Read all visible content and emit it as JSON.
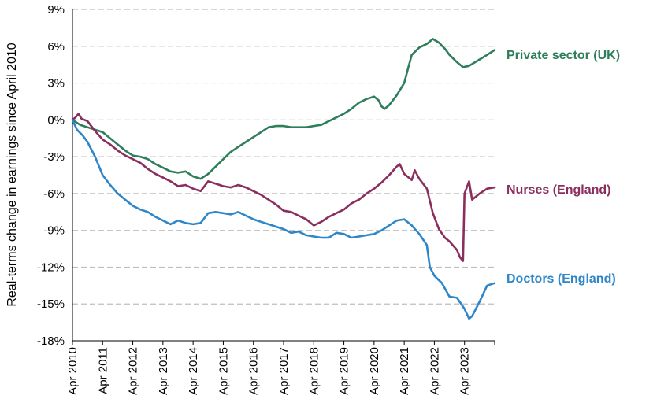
{
  "chart_data": {
    "type": "line",
    "title": "",
    "xlabel": "",
    "ylabel": "Real-terms change in earnings since April 2010",
    "ylim": [
      -18,
      9
    ],
    "y_ticks": [
      "9%",
      "6%",
      "3%",
      "0%",
      "-3%",
      "-6%",
      "-9%",
      "-12%",
      "-15%",
      "-18%"
    ],
    "y_tick_values": [
      9,
      6,
      3,
      0,
      -3,
      -6,
      -9,
      -12,
      -15,
      -18
    ],
    "xlim": [
      2010.25,
      2024.25
    ],
    "x_ticks": [
      "Apr 2010",
      "Apr 2011",
      "Apr 2012",
      "Apr 2013",
      "Apr 2014",
      "Apr 2015",
      "Apr 2016",
      "Apr 2017",
      "Apr 2018",
      "Apr 2019",
      "Apr 2020",
      "Apr 2021",
      "Apr 2022",
      "Apr 2023"
    ],
    "x_tick_values": [
      2010.25,
      2011.25,
      2012.25,
      2013.25,
      2014.25,
      2015.25,
      2016.25,
      2017.25,
      2018.25,
      2019.25,
      2020.25,
      2021.25,
      2022.25,
      2023.25
    ],
    "grid": "horizontal dashed",
    "series": [
      {
        "name": "Private sector (UK)",
        "color": "#2e7d5b",
        "points": [
          [
            2010.25,
            0
          ],
          [
            2010.5,
            -0.4
          ],
          [
            2010.75,
            -0.6
          ],
          [
            2011.0,
            -0.8
          ],
          [
            2011.25,
            -1.0
          ],
          [
            2011.5,
            -1.5
          ],
          [
            2011.75,
            -2.0
          ],
          [
            2012.0,
            -2.5
          ],
          [
            2012.25,
            -2.9
          ],
          [
            2012.5,
            -3.0
          ],
          [
            2012.75,
            -3.2
          ],
          [
            2013.0,
            -3.6
          ],
          [
            2013.25,
            -3.9
          ],
          [
            2013.5,
            -4.2
          ],
          [
            2013.75,
            -4.3
          ],
          [
            2014.0,
            -4.2
          ],
          [
            2014.25,
            -4.6
          ],
          [
            2014.5,
            -4.8
          ],
          [
            2014.75,
            -4.4
          ],
          [
            2015.0,
            -3.8
          ],
          [
            2015.25,
            -3.2
          ],
          [
            2015.5,
            -2.6
          ],
          [
            2015.75,
            -2.2
          ],
          [
            2016.0,
            -1.8
          ],
          [
            2016.25,
            -1.4
          ],
          [
            2016.5,
            -1.0
          ],
          [
            2016.75,
            -0.6
          ],
          [
            2017.0,
            -0.5
          ],
          [
            2017.25,
            -0.5
          ],
          [
            2017.5,
            -0.6
          ],
          [
            2017.75,
            -0.6
          ],
          [
            2018.0,
            -0.6
          ],
          [
            2018.25,
            -0.5
          ],
          [
            2018.5,
            -0.4
          ],
          [
            2018.75,
            -0.1
          ],
          [
            2019.0,
            0.2
          ],
          [
            2019.25,
            0.5
          ],
          [
            2019.5,
            0.9
          ],
          [
            2019.75,
            1.4
          ],
          [
            2020.0,
            1.7
          ],
          [
            2020.25,
            1.9
          ],
          [
            2020.4,
            1.6
          ],
          [
            2020.5,
            1.1
          ],
          [
            2020.6,
            0.9
          ],
          [
            2020.75,
            1.2
          ],
          [
            2021.0,
            2.0
          ],
          [
            2021.25,
            3.0
          ],
          [
            2021.4,
            4.4
          ],
          [
            2021.5,
            5.3
          ],
          [
            2021.75,
            5.9
          ],
          [
            2022.0,
            6.2
          ],
          [
            2022.2,
            6.6
          ],
          [
            2022.4,
            6.3
          ],
          [
            2022.6,
            5.8
          ],
          [
            2022.75,
            5.3
          ],
          [
            2023.0,
            4.7
          ],
          [
            2023.2,
            4.3
          ],
          [
            2023.4,
            4.4
          ],
          [
            2023.6,
            4.7
          ],
          [
            2023.8,
            5.0
          ],
          [
            2024.0,
            5.3
          ],
          [
            2024.25,
            5.7
          ]
        ]
      },
      {
        "name": "Nurses (England)",
        "color": "#8b2e5e",
        "points": [
          [
            2010.25,
            0
          ],
          [
            2010.35,
            0.2
          ],
          [
            2010.45,
            0.5
          ],
          [
            2010.55,
            0.1
          ],
          [
            2010.75,
            -0.1
          ],
          [
            2011.0,
            -0.9
          ],
          [
            2011.25,
            -1.6
          ],
          [
            2011.5,
            -2.0
          ],
          [
            2011.75,
            -2.5
          ],
          [
            2012.0,
            -2.9
          ],
          [
            2012.25,
            -3.2
          ],
          [
            2012.5,
            -3.5
          ],
          [
            2012.75,
            -4.0
          ],
          [
            2013.0,
            -4.4
          ],
          [
            2013.25,
            -4.7
          ],
          [
            2013.5,
            -5.0
          ],
          [
            2013.75,
            -5.4
          ],
          [
            2014.0,
            -5.3
          ],
          [
            2014.25,
            -5.6
          ],
          [
            2014.5,
            -5.8
          ],
          [
            2014.75,
            -5.0
          ],
          [
            2015.0,
            -5.2
          ],
          [
            2015.25,
            -5.4
          ],
          [
            2015.5,
            -5.5
          ],
          [
            2015.75,
            -5.3
          ],
          [
            2016.0,
            -5.5
          ],
          [
            2016.25,
            -5.8
          ],
          [
            2016.5,
            -6.1
          ],
          [
            2016.75,
            -6.5
          ],
          [
            2017.0,
            -6.9
          ],
          [
            2017.25,
            -7.4
          ],
          [
            2017.5,
            -7.5
          ],
          [
            2017.75,
            -7.8
          ],
          [
            2018.0,
            -8.1
          ],
          [
            2018.25,
            -8.6
          ],
          [
            2018.5,
            -8.3
          ],
          [
            2018.75,
            -7.9
          ],
          [
            2019.0,
            -7.6
          ],
          [
            2019.25,
            -7.3
          ],
          [
            2019.5,
            -6.8
          ],
          [
            2019.75,
            -6.5
          ],
          [
            2020.0,
            -6.0
          ],
          [
            2020.25,
            -5.6
          ],
          [
            2020.5,
            -5.1
          ],
          [
            2020.75,
            -4.5
          ],
          [
            2021.0,
            -3.8
          ],
          [
            2021.1,
            -3.6
          ],
          [
            2021.25,
            -4.4
          ],
          [
            2021.5,
            -4.9
          ],
          [
            2021.6,
            -4.1
          ],
          [
            2021.75,
            -4.8
          ],
          [
            2022.0,
            -5.6
          ],
          [
            2022.2,
            -7.6
          ],
          [
            2022.4,
            -8.9
          ],
          [
            2022.6,
            -9.6
          ],
          [
            2022.75,
            -9.9
          ],
          [
            2023.0,
            -10.6
          ],
          [
            2023.1,
            -11.2
          ],
          [
            2023.2,
            -11.5
          ],
          [
            2023.25,
            -6.0
          ],
          [
            2023.4,
            -5.0
          ],
          [
            2023.5,
            -6.5
          ],
          [
            2023.75,
            -6.0
          ],
          [
            2024.0,
            -5.6
          ],
          [
            2024.25,
            -5.5
          ]
        ]
      },
      {
        "name": "Doctors (England)",
        "color": "#2e86c9",
        "points": [
          [
            2010.25,
            0
          ],
          [
            2010.4,
            -0.8
          ],
          [
            2010.6,
            -1.3
          ],
          [
            2010.75,
            -1.8
          ],
          [
            2011.0,
            -3.0
          ],
          [
            2011.25,
            -4.5
          ],
          [
            2011.5,
            -5.3
          ],
          [
            2011.75,
            -6.0
          ],
          [
            2012.0,
            -6.5
          ],
          [
            2012.25,
            -7.0
          ],
          [
            2012.5,
            -7.3
          ],
          [
            2012.75,
            -7.5
          ],
          [
            2013.0,
            -7.9
          ],
          [
            2013.25,
            -8.2
          ],
          [
            2013.5,
            -8.5
          ],
          [
            2013.75,
            -8.2
          ],
          [
            2014.0,
            -8.4
          ],
          [
            2014.25,
            -8.5
          ],
          [
            2014.5,
            -8.4
          ],
          [
            2014.75,
            -7.6
          ],
          [
            2015.0,
            -7.5
          ],
          [
            2015.25,
            -7.6
          ],
          [
            2015.5,
            -7.7
          ],
          [
            2015.75,
            -7.5
          ],
          [
            2016.0,
            -7.8
          ],
          [
            2016.25,
            -8.1
          ],
          [
            2016.5,
            -8.3
          ],
          [
            2016.75,
            -8.5
          ],
          [
            2017.0,
            -8.7
          ],
          [
            2017.25,
            -8.9
          ],
          [
            2017.5,
            -9.2
          ],
          [
            2017.75,
            -9.1
          ],
          [
            2018.0,
            -9.4
          ],
          [
            2018.25,
            -9.5
          ],
          [
            2018.5,
            -9.6
          ],
          [
            2018.75,
            -9.6
          ],
          [
            2019.0,
            -9.2
          ],
          [
            2019.25,
            -9.3
          ],
          [
            2019.5,
            -9.6
          ],
          [
            2019.75,
            -9.5
          ],
          [
            2020.0,
            -9.4
          ],
          [
            2020.25,
            -9.3
          ],
          [
            2020.5,
            -9.0
          ],
          [
            2020.75,
            -8.6
          ],
          [
            2021.0,
            -8.2
          ],
          [
            2021.25,
            -8.1
          ],
          [
            2021.5,
            -8.6
          ],
          [
            2021.75,
            -9.3
          ],
          [
            2022.0,
            -10.2
          ],
          [
            2022.1,
            -12.0
          ],
          [
            2022.25,
            -12.7
          ],
          [
            2022.5,
            -13.3
          ],
          [
            2022.75,
            -14.4
          ],
          [
            2023.0,
            -14.5
          ],
          [
            2023.25,
            -15.4
          ],
          [
            2023.4,
            -16.2
          ],
          [
            2023.5,
            -16.0
          ],
          [
            2023.75,
            -14.8
          ],
          [
            2024.0,
            -13.5
          ],
          [
            2024.25,
            -13.3
          ]
        ]
      }
    ]
  }
}
